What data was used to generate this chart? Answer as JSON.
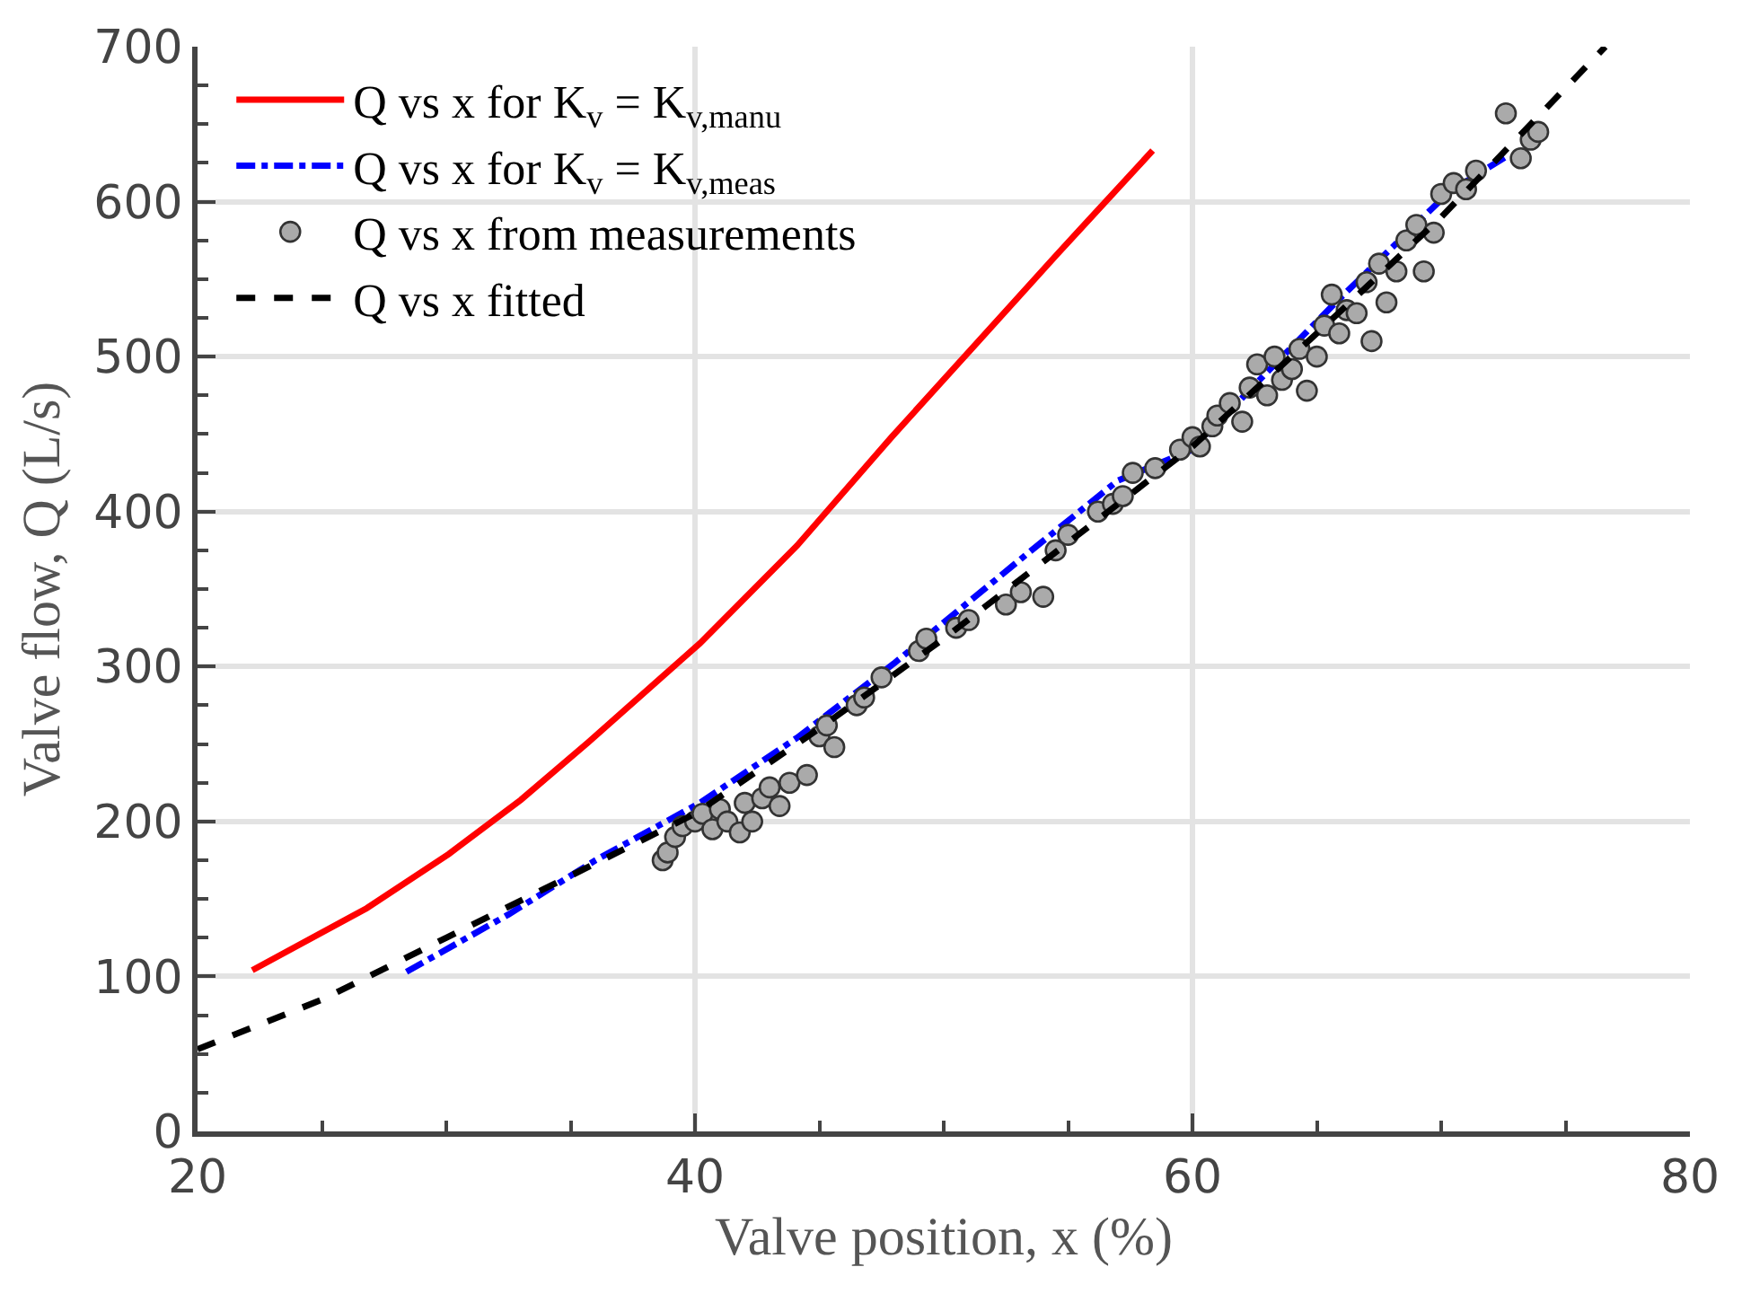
{
  "chart_data": {
    "type": "line",
    "xlabel": "Valve position, x (%)",
    "ylabel": "Valve flow, Q (L/s)",
    "xlim": [
      20,
      80
    ],
    "xticks": [
      20,
      40,
      60,
      80
    ],
    "ylim": [
      0,
      700
    ],
    "yticks": [
      0,
      100,
      200,
      300,
      400,
      500,
      600,
      700
    ],
    "grid": true,
    "legend": "top left",
    "series": [
      {
        "name": "Q vs x for K$_{v}$ = K$_{v,manu}$",
        "color": "#ff0000",
        "line_style": "solid",
        "marker": "none",
        "x": [
          22.2,
          26.8,
          30.1,
          33.0,
          35.7,
          40.2,
          44.1,
          47.9,
          51.4,
          54.5,
          58.4
        ],
        "values": [
          104,
          144,
          179,
          214,
          251,
          315,
          378,
          448,
          510,
          565,
          633
        ]
      },
      {
        "name": "Q vs x for K$_{v}$ = K$_{v,meas}$",
        "color": "#0000ff",
        "line_style": "dashdot",
        "marker": "none",
        "x": [
          28.4,
          32.5,
          36,
          40.2,
          44.1,
          48,
          53.3,
          57,
          60,
          63,
          65.7,
          68,
          70.3,
          72.7
        ],
        "values": [
          103,
          140,
          175,
          212,
          254,
          302,
          372,
          420,
          440,
          490,
          534,
          570,
          606,
          630
        ]
      },
      {
        "name": "Q vs x from measurements",
        "type": "scatter",
        "color": "#aaaaaa",
        "marker": "circle",
        "x": [
          38.7,
          38.9,
          39.2,
          39.5,
          40,
          40.3,
          40.7,
          41,
          41.3,
          41.8,
          42,
          42.3,
          42.7,
          43,
          43.4,
          43.8,
          44.5,
          45,
          45.3,
          45.6,
          46.5,
          46.8,
          47.5,
          49,
          49.3,
          50.5,
          51,
          52.5,
          53.1,
          54,
          54.5,
          55,
          56.2,
          56.8,
          57.2,
          57.6,
          58.5,
          59.5,
          60,
          60.3,
          60.8,
          61,
          61.5,
          62,
          62.3,
          62.6,
          63,
          63.3,
          63.6,
          64,
          64.3,
          64.6,
          65,
          65.3,
          65.6,
          65.9,
          66.2,
          66.6,
          67,
          67.2,
          67.5,
          67.8,
          68.2,
          68.6,
          69,
          69.3,
          69.7,
          70,
          70.5,
          71,
          71.4,
          72.6,
          73.2,
          73.6,
          73.9
        ],
        "values": [
          175,
          180,
          190,
          197,
          200,
          205,
          195,
          208,
          200,
          193,
          212,
          200,
          215,
          222,
          210,
          225,
          230,
          255,
          262,
          248,
          275,
          280,
          293,
          310,
          318,
          325,
          330,
          340,
          348,
          345,
          375,
          385,
          400,
          405,
          410,
          425,
          428,
          440,
          448,
          442,
          455,
          462,
          470,
          458,
          480,
          495,
          475,
          500,
          485,
          492,
          505,
          478,
          500,
          520,
          540,
          515,
          530,
          528,
          548,
          510,
          560,
          535,
          555,
          575,
          585,
          555,
          580,
          605,
          612,
          608,
          620,
          657,
          628,
          640,
          645
        ]
      },
      {
        "name": "Q vs x fitted",
        "color": "#000000",
        "line_style": "dashed",
        "marker": "none",
        "x": [
          20,
          25,
          30,
          35,
          40,
          45,
          50,
          55,
          60,
          65,
          70,
          73,
          76.6
        ],
        "values": [
          53,
          85,
          125,
          165,
          205,
          260,
          318,
          380,
          442,
          515,
          590,
          640,
          700
        ]
      }
    ]
  }
}
